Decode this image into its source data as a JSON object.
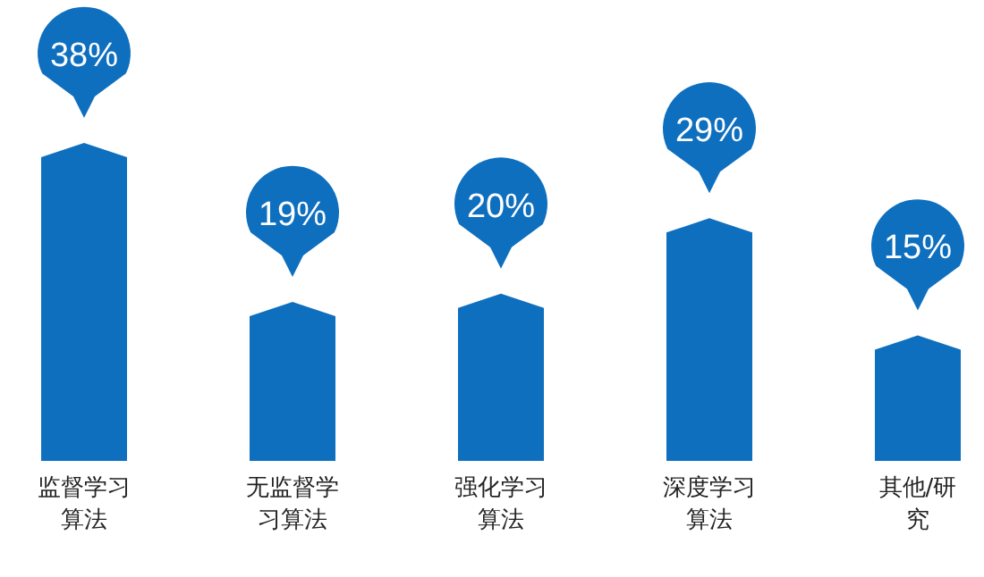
{
  "chart_data": {
    "type": "bar",
    "categories": [
      "监督学习算法",
      "无监督学习算法",
      "强化学习算法",
      "深度学习算法",
      "其他/研究"
    ],
    "values": [
      38,
      19,
      20,
      29,
      15
    ],
    "value_labels": [
      "38%",
      "19%",
      "20%",
      "29%",
      "15%"
    ],
    "color": "#0f6fbf"
  }
}
